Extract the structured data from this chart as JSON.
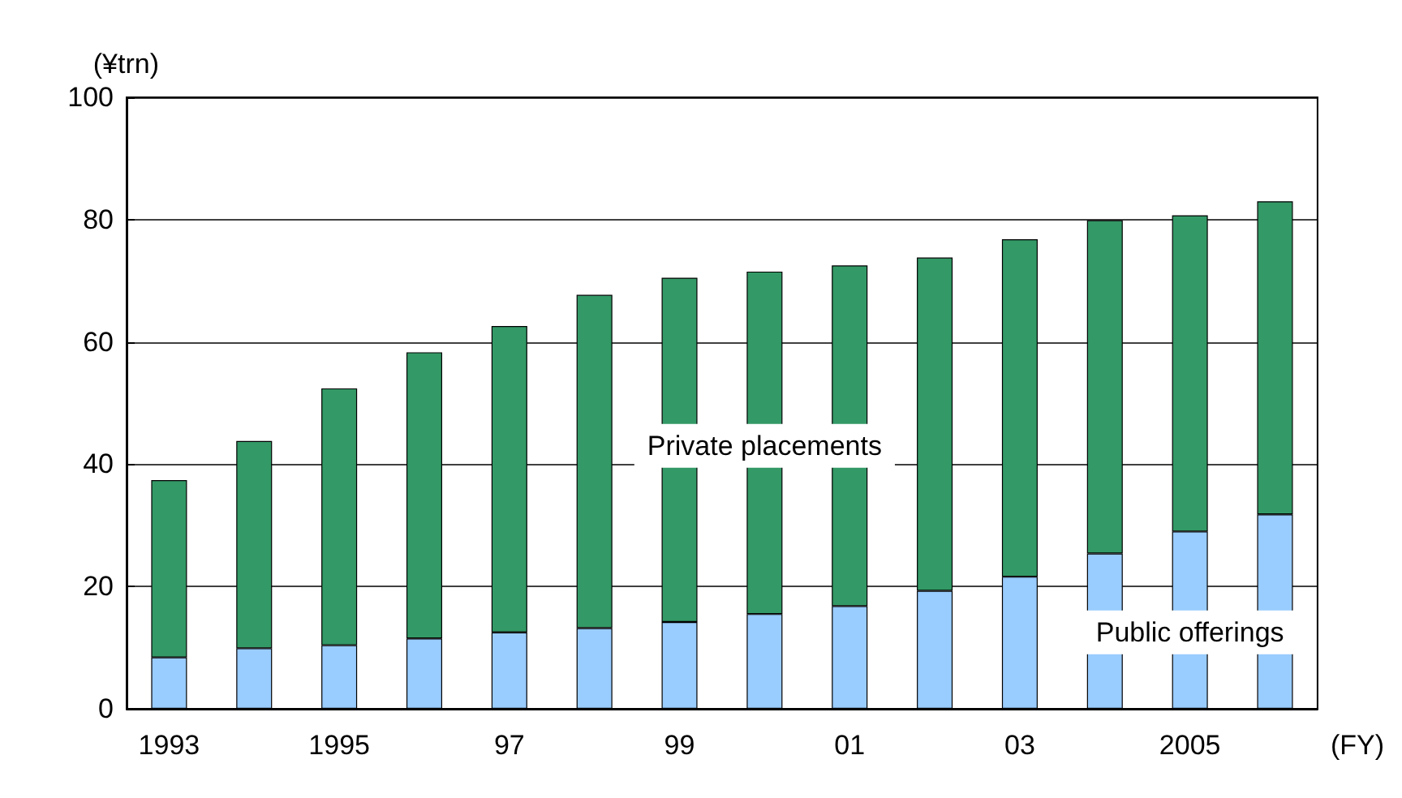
{
  "chart_data": {
    "type": "bar",
    "stacked": true,
    "ylabel": "(¥trn)",
    "xlabel": "(FY)",
    "categories": [
      "1993",
      null,
      "1995",
      null,
      "97",
      null,
      "99",
      null,
      "01",
      null,
      "03",
      null,
      "2005",
      null
    ],
    "series": [
      {
        "name": "Public offerings",
        "color": "#99ccff",
        "values": [
          8.4,
          9.9,
          10.4,
          11.5,
          12.5,
          13.2,
          14.2,
          15.5,
          16.8,
          19.3,
          21.6,
          25.4,
          29.0,
          31.8
        ]
      },
      {
        "name": "Private placements",
        "color": "#339966",
        "values": [
          29.0,
          33.9,
          42.0,
          46.8,
          50.1,
          54.5,
          56.3,
          56.0,
          55.7,
          54.5,
          55.2,
          54.5,
          51.7,
          51.2
        ]
      }
    ],
    "ylim": [
      0,
      100
    ],
    "yticks": [
      0,
      20,
      40,
      60,
      80,
      100
    ],
    "grid": "y",
    "legend": false
  }
}
